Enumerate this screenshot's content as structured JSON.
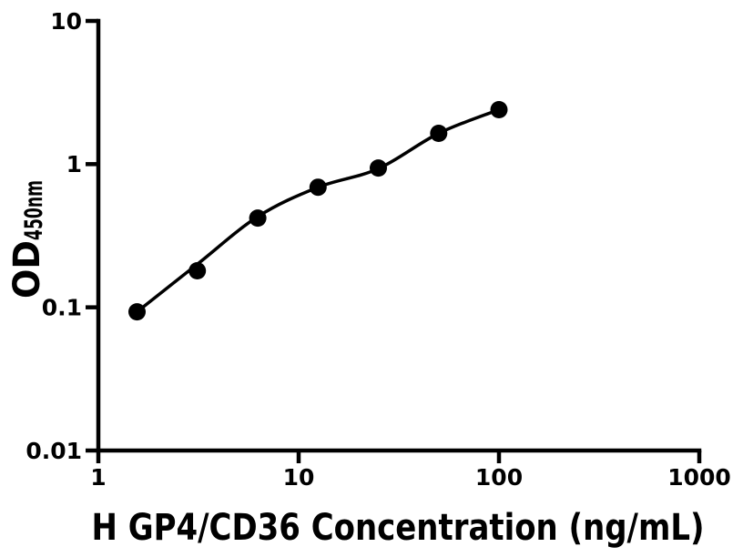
{
  "chart_data": {
    "type": "scatter",
    "title": "",
    "xlabel": "H GP4/CD36 Concentration (ng/mL)",
    "ylabel": "OD450nm",
    "ylabel_main": "OD",
    "ylabel_sub": "450nm",
    "x_scale": "log",
    "y_scale": "log",
    "xlim": [
      1,
      1000
    ],
    "ylim": [
      0.01,
      10
    ],
    "x_tick_values": [
      1,
      10,
      100,
      1000
    ],
    "x_tick_labels": [
      "1",
      "10",
      "100",
      "1000"
    ],
    "y_tick_values": [
      10,
      1,
      0.1,
      0.01
    ],
    "y_tick_labels": [
      "10",
      "1",
      "0.1",
      "0.01"
    ],
    "grid": false,
    "legend_position": "none",
    "marker": "filled-circle",
    "series": [
      {
        "x": [
          1.56,
          3.12,
          6.25,
          12.5,
          25,
          50,
          100
        ],
        "y": [
          0.093,
          0.18,
          0.42,
          0.69,
          0.94,
          1.64,
          2.4
        ],
        "fit_curve_y": [
          0.093,
          0.2,
          0.43,
          0.69,
          0.93,
          1.64,
          2.4
        ]
      }
    ],
    "colors": {
      "background": "#ffffff",
      "axes": "#000000",
      "markers": "#000000",
      "curve": "#000000",
      "text": "#000000"
    }
  }
}
